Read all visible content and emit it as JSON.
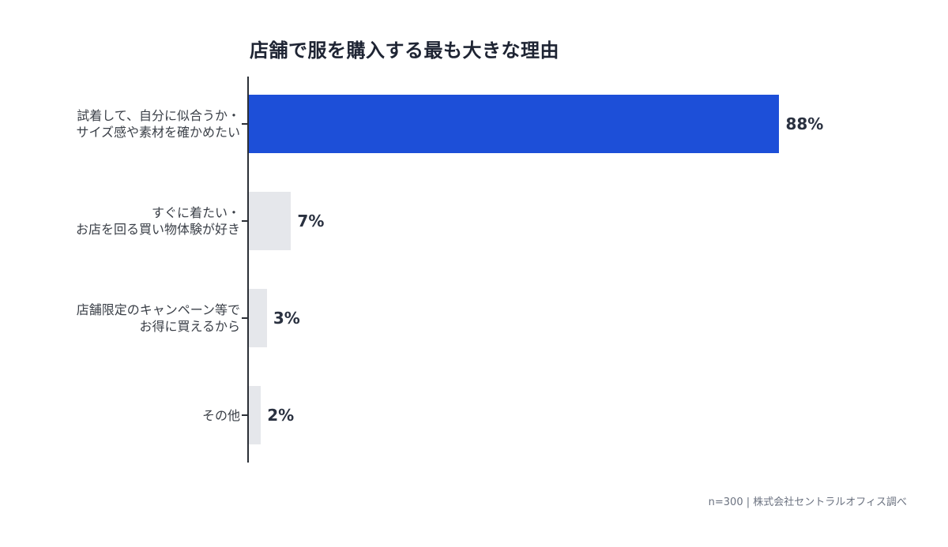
{
  "chart_data": {
    "type": "bar",
    "orientation": "horizontal",
    "title": "店舗で服を購入する最も大きな理由",
    "categories": [
      "試着して、自分に似合うか・サイズ感や素材を確かめたい",
      "すぐに着たい・お店を回る買い物体験が好き",
      "店舗限定のキャンペーン等でお得に買えるから",
      "その他"
    ],
    "values": [
      88,
      7,
      3,
      2
    ],
    "unit": "%",
    "xlabel": "",
    "ylabel": "",
    "xlim": [
      0,
      100
    ],
    "grid": false,
    "legend": null,
    "highlight_index": 0,
    "colors": {
      "highlight": "#1d4fd8",
      "default": "#e5e7eb"
    },
    "annotation": "n=300 | 株式会社セントラルオフィス調べ"
  },
  "title": "店舗で服を購入する最も大きな理由",
  "rows": [
    {
      "line1": "試着して、自分に似合うか・",
      "line2": "サイズ感や素材を確かめたい",
      "value_label": "88%",
      "value": 88,
      "color": "#1d4fd8"
    },
    {
      "line1": "すぐに着たい・",
      "line2": "お店を回る買い物体験が好き",
      "value_label": "7%",
      "value": 7,
      "color": "#e5e7eb"
    },
    {
      "line1": "店舗限定のキャンペーン等で",
      "line2": "お得に買えるから",
      "value_label": "3%",
      "value": 3,
      "color": "#e5e7eb"
    },
    {
      "line1": "その他",
      "line2": "",
      "value_label": "2%",
      "value": 2,
      "color": "#e5e7eb"
    }
  ],
  "source": "n=300 | 株式会社セントラルオフィス調べ"
}
